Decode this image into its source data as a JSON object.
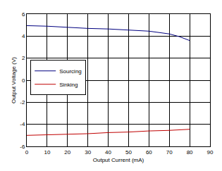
{
  "chart_data": {
    "type": "line",
    "x_label": "Output Current (mA)",
    "y_label": "Output Voltage (V)",
    "series": [
      {
        "name": "Sourcing",
        "color": "#000080",
        "x": [
          0,
          10,
          20,
          30,
          40,
          50,
          60,
          70,
          75,
          80
        ],
        "values": [
          4.95,
          4.9,
          4.8,
          4.7,
          4.65,
          4.55,
          4.45,
          4.2,
          3.95,
          3.6
        ]
      },
      {
        "name": "Sinking",
        "color": "#c00000",
        "x": [
          0,
          10,
          20,
          30,
          40,
          50,
          60,
          70,
          80
        ],
        "values": [
          -5.0,
          -4.95,
          -4.9,
          -4.85,
          -4.75,
          -4.7,
          -4.6,
          -4.55,
          -4.45
        ]
      }
    ],
    "xlim": [
      0,
      90
    ],
    "xticks": [
      0,
      10,
      20,
      30,
      40,
      50,
      60,
      70,
      80,
      90
    ],
    "ylim": [
      -6,
      6
    ],
    "yticks": [
      -6,
      -4,
      -2,
      0,
      2,
      4,
      6
    ],
    "grid": true,
    "legend": "center left"
  }
}
